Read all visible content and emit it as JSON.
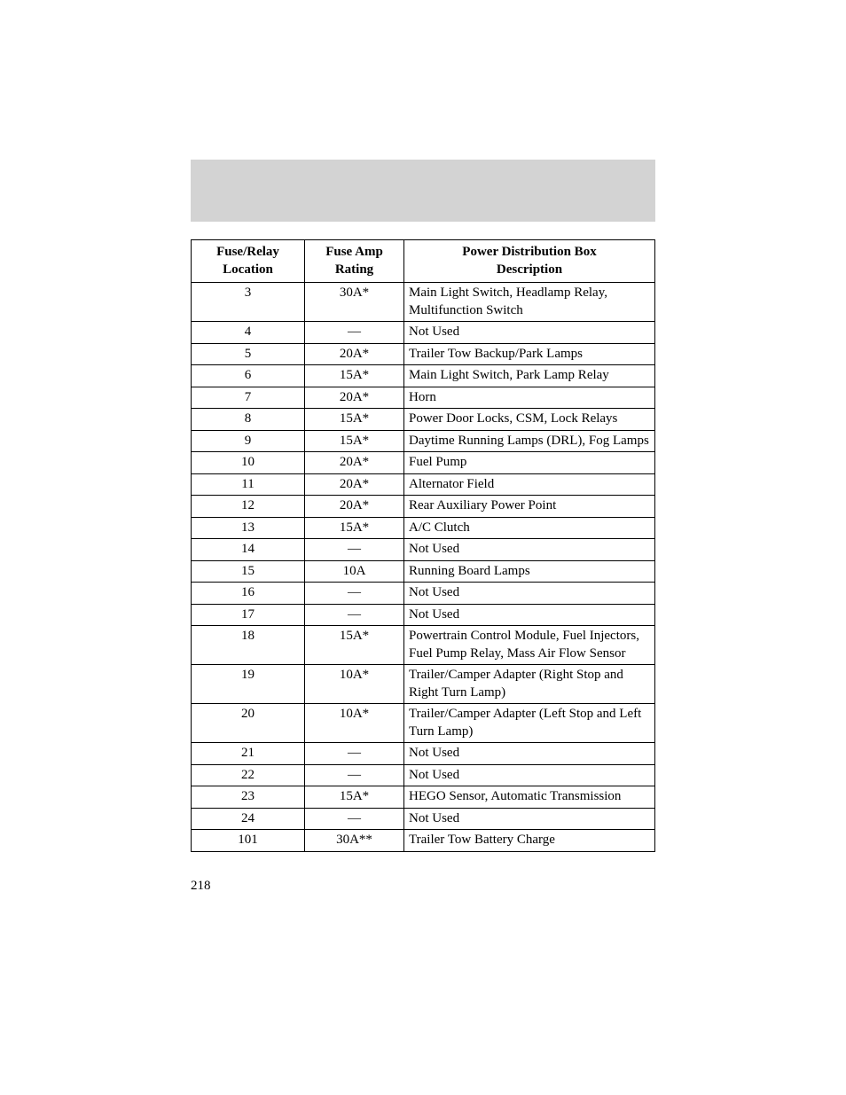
{
  "table": {
    "headers": {
      "col1_line1": "Fuse/Relay",
      "col1_line2": "Location",
      "col2_line1": "Fuse Amp",
      "col2_line2": "Rating",
      "col3_line1": "Power Distribution Box",
      "col3_line2": "Description"
    },
    "rows": [
      {
        "loc": "3",
        "amp": "30A*",
        "desc": "Main Light Switch, Headlamp Relay, Multifunction Switch"
      },
      {
        "loc": "4",
        "amp": "—",
        "desc": "Not Used"
      },
      {
        "loc": "5",
        "amp": "20A*",
        "desc": "Trailer Tow Backup/Park Lamps"
      },
      {
        "loc": "6",
        "amp": "15A*",
        "desc": "Main Light Switch, Park Lamp Relay"
      },
      {
        "loc": "7",
        "amp": "20A*",
        "desc": "Horn"
      },
      {
        "loc": "8",
        "amp": "15A*",
        "desc": "Power Door Locks, CSM, Lock Relays"
      },
      {
        "loc": "9",
        "amp": "15A*",
        "desc": "Daytime Running Lamps (DRL), Fog Lamps"
      },
      {
        "loc": "10",
        "amp": "20A*",
        "desc": "Fuel Pump"
      },
      {
        "loc": "11",
        "amp": "20A*",
        "desc": "Alternator Field"
      },
      {
        "loc": "12",
        "amp": "20A*",
        "desc": "Rear Auxiliary Power Point"
      },
      {
        "loc": "13",
        "amp": "15A*",
        "desc": "A/C Clutch"
      },
      {
        "loc": "14",
        "amp": "—",
        "desc": "Not Used"
      },
      {
        "loc": "15",
        "amp": "10A",
        "desc": "Running Board Lamps"
      },
      {
        "loc": "16",
        "amp": "—",
        "desc": "Not Used"
      },
      {
        "loc": "17",
        "amp": "—",
        "desc": "Not Used"
      },
      {
        "loc": "18",
        "amp": "15A*",
        "desc": "Powertrain Control Module, Fuel Injectors, Fuel Pump Relay, Mass Air Flow Sensor"
      },
      {
        "loc": "19",
        "amp": "10A*",
        "desc": "Trailer/Camper Adapter (Right Stop and Right Turn Lamp)"
      },
      {
        "loc": "20",
        "amp": "10A*",
        "desc": "Trailer/Camper Adapter (Left Stop and Left Turn Lamp)"
      },
      {
        "loc": "21",
        "amp": "—",
        "desc": "Not Used"
      },
      {
        "loc": "22",
        "amp": "—",
        "desc": "Not Used"
      },
      {
        "loc": "23",
        "amp": "15A*",
        "desc": "HEGO Sensor, Automatic Transmission"
      },
      {
        "loc": "24",
        "amp": "—",
        "desc": "Not Used"
      },
      {
        "loc": "101",
        "amp": "30A**",
        "desc": "Trailer Tow Battery Charge"
      }
    ]
  },
  "page_number": "218"
}
